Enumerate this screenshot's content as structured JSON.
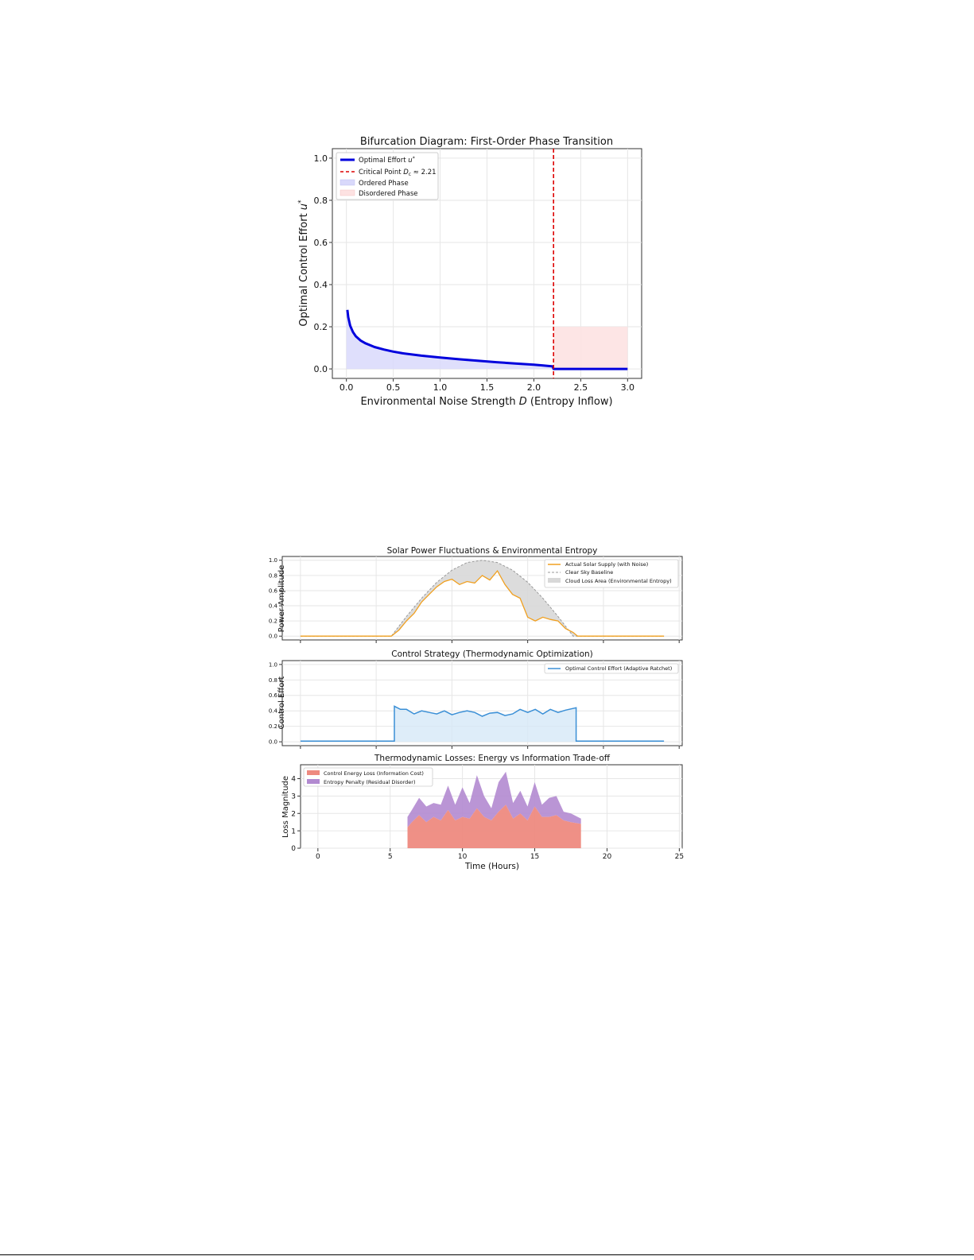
{
  "chart_data": [
    {
      "type": "line",
      "title": "Bifurcation Diagram: First-Order Phase Transition",
      "xlabel": "Environmental Noise Strength D (Entropy Inflow)",
      "ylabel": "Optimal Control Effort u*",
      "xlim": [
        -0.15,
        3.15
      ],
      "ylim": [
        -0.045,
        1.045
      ],
      "xticks": [
        "0.0",
        "0.5",
        "1.0",
        "1.5",
        "2.0",
        "2.5",
        "3.0"
      ],
      "yticks": [
        "0.0",
        "0.2",
        "0.4",
        "0.6",
        "0.8",
        "1.0"
      ],
      "grid": true,
      "legend_position": "top-left",
      "legend": [
        "Optimal Effort u*",
        "Critical Point Dₑ ≈ 2.21",
        "Ordered Phase",
        "Disordered Phase"
      ],
      "series": [
        {
          "name": "Optimal Effort u*",
          "color": "#0000dd",
          "x": [
            0.01,
            0.02,
            0.04,
            0.07,
            0.1,
            0.15,
            0.2,
            0.3,
            0.4,
            0.5,
            0.6,
            0.8,
            1.0,
            1.2,
            1.4,
            1.6,
            1.8,
            2.0,
            2.1,
            2.2,
            2.21,
            2.3,
            2.5,
            3.0
          ],
          "y": [
            0.28,
            0.245,
            0.205,
            0.175,
            0.155,
            0.135,
            0.122,
            0.104,
            0.092,
            0.082,
            0.074,
            0.063,
            0.054,
            0.046,
            0.039,
            0.032,
            0.026,
            0.02,
            0.016,
            0.012,
            0.0,
            0.0,
            0.0,
            0.0
          ]
        }
      ],
      "critical_point": {
        "x": 2.21,
        "color": "#dd0000"
      },
      "regions": [
        {
          "name": "Ordered Phase",
          "x": [
            0.0,
            2.21
          ],
          "color": "#d9d9fb"
        },
        {
          "name": "Disordered Phase",
          "x": [
            2.21,
            3.0
          ],
          "y": [
            0.0,
            0.2
          ],
          "color": "#fde2e2"
        }
      ]
    },
    {
      "type": "area",
      "title": "Solar Power Fluctuations & Environmental Entropy",
      "xlabel": "",
      "ylabel": "Power Amplitude",
      "xlim": [
        -1.2,
        25.2
      ],
      "ylim": [
        -0.05,
        1.05
      ],
      "xticks": [
        "0",
        "5",
        "10",
        "15",
        "20",
        "25"
      ],
      "yticks": [
        "0.0",
        "0.2",
        "0.4",
        "0.6",
        "0.8",
        "1.0"
      ],
      "grid": true,
      "legend_position": "top-right",
      "legend": [
        "Actual Solar Supply (with Noise)",
        "Clear Sky Baseline",
        "Cloud Loss Area (Environmental Entropy)"
      ],
      "series": [
        {
          "name": "Actual Solar Supply (with Noise)",
          "color": "#f0a020",
          "x": [
            0,
            6,
            6.5,
            7,
            7.5,
            8,
            8.5,
            9,
            9.5,
            10,
            10.5,
            11,
            11.5,
            12,
            12.5,
            13,
            13.5,
            14,
            14.5,
            15,
            15.5,
            16,
            16.5,
            17,
            17.5,
            18,
            18.3,
            24
          ],
          "y": [
            0,
            0,
            0.08,
            0.2,
            0.3,
            0.45,
            0.55,
            0.65,
            0.72,
            0.75,
            0.68,
            0.72,
            0.7,
            0.8,
            0.74,
            0.86,
            0.68,
            0.55,
            0.5,
            0.25,
            0.2,
            0.25,
            0.22,
            0.2,
            0.1,
            0.05,
            0.0,
            0
          ]
        },
        {
          "name": "Clear Sky Baseline",
          "color": "#9a9a9a",
          "x": [
            0,
            6,
            7,
            8,
            9,
            10,
            11,
            12,
            13,
            14,
            15,
            16,
            17,
            18,
            24
          ],
          "y": [
            0,
            0,
            0.26,
            0.5,
            0.71,
            0.87,
            0.97,
            1.0,
            0.97,
            0.87,
            0.71,
            0.5,
            0.26,
            0,
            0
          ]
        }
      ]
    },
    {
      "type": "line",
      "title": "Control Strategy (Thermodynamic Optimization)",
      "xlabel": "",
      "ylabel": "Control Effort",
      "xlim": [
        -1.2,
        25.2
      ],
      "ylim": [
        -0.05,
        1.05
      ],
      "xticks": [
        "0",
        "5",
        "10",
        "15",
        "20",
        "25"
      ],
      "yticks": [
        "0.0",
        "0.2",
        "0.4",
        "0.6",
        "0.8",
        "1.0"
      ],
      "grid": true,
      "legend_position": "top-right",
      "legend": [
        "Optimal Control Effort (Adaptive Ratchet)"
      ],
      "series": [
        {
          "name": "Optimal Control Effort (Adaptive Ratchet)",
          "color": "#3a8fd6",
          "x": [
            0,
            6.2,
            6.2,
            6.6,
            7,
            7.5,
            8,
            8.5,
            9,
            9.5,
            10,
            10.5,
            11,
            11.5,
            12,
            12.5,
            13,
            13.5,
            14,
            14.5,
            15,
            15.5,
            16,
            16.5,
            17,
            17.5,
            18.2,
            18.2,
            24
          ],
          "y": [
            0.01,
            0.01,
            0.46,
            0.42,
            0.42,
            0.36,
            0.4,
            0.38,
            0.36,
            0.4,
            0.35,
            0.38,
            0.4,
            0.38,
            0.33,
            0.37,
            0.38,
            0.34,
            0.36,
            0.42,
            0.38,
            0.42,
            0.36,
            0.42,
            0.38,
            0.41,
            0.44,
            0.01,
            0.01
          ]
        }
      ]
    },
    {
      "type": "area",
      "title": "Thermodynamic Losses: Energy vs Information Trade-off",
      "xlabel": "Time (Hours)",
      "ylabel": "Loss Magnitude",
      "xlim": [
        -1.2,
        25.2
      ],
      "ylim": [
        0,
        4.8
      ],
      "xticks": [
        "0",
        "5",
        "10",
        "15",
        "20",
        "25"
      ],
      "yticks": [
        "0",
        "1",
        "2",
        "3",
        "4"
      ],
      "grid": true,
      "legend_position": "top-left",
      "legend": [
        "Control Energy Loss (Information Cost)",
        "Entropy Penalty (Residual Disorder)"
      ],
      "series": [
        {
          "name": "Control Energy Loss (Information Cost)",
          "color": "#ee8a80",
          "x": [
            6.2,
            6.5,
            7,
            7.5,
            8,
            8.5,
            9,
            9.5,
            10,
            10.5,
            11,
            11.5,
            12,
            12.5,
            13,
            13.5,
            14,
            14.5,
            15,
            15.5,
            16,
            16.5,
            17,
            17.5,
            18.2
          ],
          "y": [
            1.2,
            1.5,
            1.9,
            1.5,
            1.8,
            1.6,
            2.2,
            1.6,
            1.8,
            1.7,
            2.3,
            1.8,
            1.6,
            2.1,
            2.5,
            1.7,
            2.0,
            1.6,
            2.4,
            1.8,
            1.8,
            1.9,
            1.6,
            1.5,
            1.4
          ]
        },
        {
          "name": "Entropy Penalty (Residual Disorder)",
          "color": "#b28ad0",
          "x": [
            6.2,
            6.5,
            7,
            7.5,
            8,
            8.5,
            9,
            9.5,
            10,
            10.5,
            11,
            11.5,
            12,
            12.5,
            13,
            13.5,
            14,
            14.5,
            15,
            15.5,
            16,
            16.5,
            17,
            17.5,
            18.2
          ],
          "y": [
            1.8,
            2.2,
            2.9,
            2.4,
            2.6,
            2.5,
            3.6,
            2.5,
            3.5,
            2.6,
            4.2,
            3.0,
            2.3,
            3.8,
            4.4,
            2.6,
            3.3,
            2.4,
            3.8,
            2.5,
            2.9,
            3.0,
            2.1,
            2.0,
            1.7
          ]
        }
      ]
    }
  ]
}
